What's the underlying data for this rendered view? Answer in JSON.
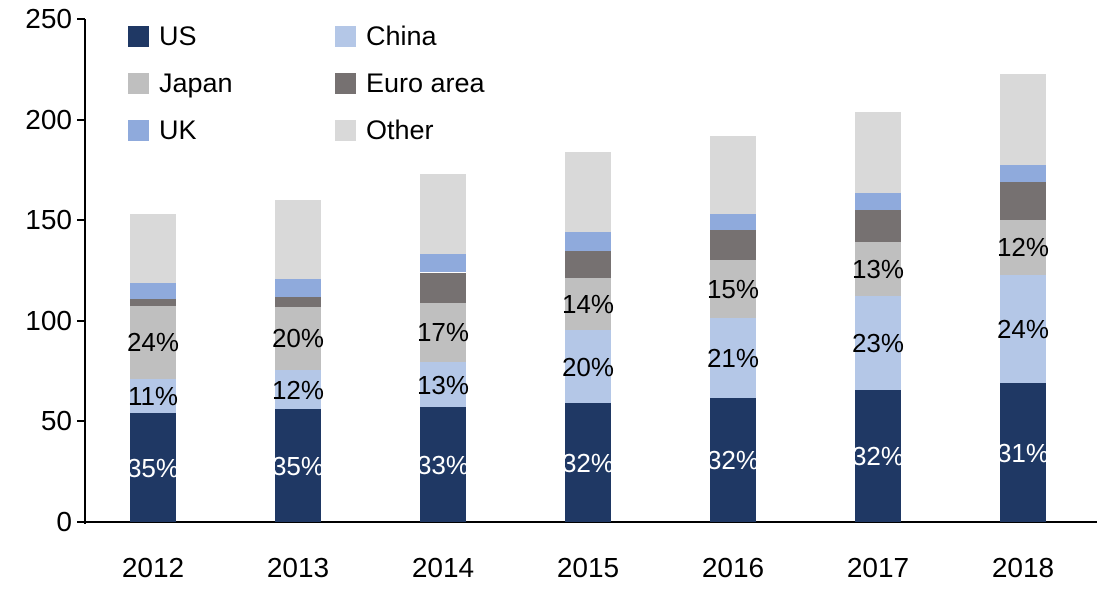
{
  "chart_data": {
    "type": "bar",
    "stacked": true,
    "title": "",
    "xlabel": "",
    "ylabel": "",
    "categories": [
      "2012",
      "2013",
      "2014",
      "2015",
      "2016",
      "2017",
      "2018"
    ],
    "series": [
      {
        "name": "US",
        "color": "#1F3864",
        "values": [
          54,
          56,
          57,
          59,
          61.5,
          65.5,
          69
        ],
        "labels": [
          "35%",
          "35%",
          "33%",
          "32%",
          "32%",
          "32%",
          "31%"
        ],
        "label_color": "#FFFFFF"
      },
      {
        "name": "China",
        "color": "#B4C7E7",
        "values": [
          17,
          19.5,
          22.5,
          36.5,
          40,
          47,
          54
        ],
        "labels": [
          "11%",
          "12%",
          "13%",
          "20%",
          "21%",
          "23%",
          "24%"
        ],
        "label_color": "#000000"
      },
      {
        "name": "Japan",
        "color": "#BFBFBF",
        "values": [
          36.5,
          31.5,
          29.5,
          26,
          28.5,
          26.5,
          27
        ],
        "labels": [
          "24%",
          "20%",
          "17%",
          "14%",
          "15%",
          "13%",
          "12%"
        ],
        "label_color": "#000000"
      },
      {
        "name": "Euro area",
        "color": "#767171",
        "values": [
          3.5,
          5,
          15,
          13,
          15,
          16,
          19
        ],
        "labels": null,
        "label_color": "#000000"
      },
      {
        "name": "UK",
        "color": "#8FAADC",
        "values": [
          8,
          9,
          9,
          9.5,
          8,
          8.5,
          8.5
        ],
        "labels": null,
        "label_color": "#000000"
      },
      {
        "name": "Other",
        "color": "#D9D9D9",
        "values": [
          34,
          39,
          40,
          40,
          39,
          40.5,
          45
        ],
        "labels": null,
        "label_color": "#000000"
      }
    ],
    "y_axis": {
      "min": 0,
      "max": 250,
      "ticks": [
        0,
        50,
        100,
        150,
        200,
        250
      ]
    },
    "legend": {
      "position": "top-left",
      "columns": 2,
      "order": [
        "US",
        "China",
        "Japan",
        "Euro area",
        "UK",
        "Other"
      ]
    },
    "grid": false,
    "axis_color": "#000000",
    "background_color": "#FFFFFF"
  }
}
